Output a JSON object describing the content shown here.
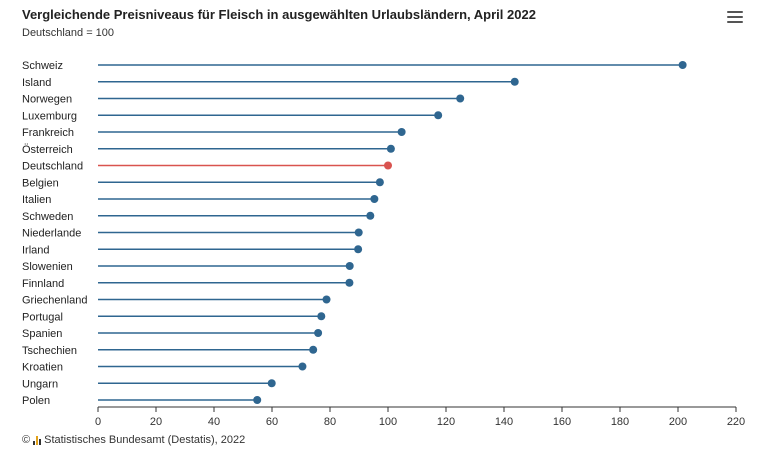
{
  "header": {
    "title": "Vergleichende Preisniveaus für Fleisch in ausgewählten Urlaubsländern, April 2022",
    "subtitle": "Deutschland = 100"
  },
  "menu": {
    "icon": "hamburger-menu-icon"
  },
  "credits": {
    "copyright": "©",
    "logo_icon": "destatis-logo-icon",
    "text": "Statistisches Bundesamt (Destatis), 2022"
  },
  "colors": {
    "series": "#2f6690",
    "highlight": "#d9534f",
    "grid": "#e6e6e6",
    "axis": "#333333"
  },
  "chart_data": {
    "type": "lollipop",
    "orientation": "horizontal",
    "title": "Vergleichende Preisniveaus für Fleisch in ausgewählten Urlaubsländern, April 2022",
    "subtitle": "Deutschland = 100",
    "categories": [
      "Schweiz",
      "Island",
      "Norwegen",
      "Luxemburg",
      "Frankreich",
      "Österreich",
      "Deutschland",
      "Belgien",
      "Italien",
      "Schweden",
      "Niederlande",
      "Irland",
      "Slowenien",
      "Finnland",
      "Griechenland",
      "Portugal",
      "Spanien",
      "Tschechien",
      "Kroatien",
      "Ungarn",
      "Polen"
    ],
    "values": [
      201.6,
      143.7,
      124.9,
      117.3,
      104.7,
      101.0,
      100.0,
      97.2,
      95.3,
      93.9,
      89.9,
      89.7,
      86.8,
      86.7,
      78.8,
      77.0,
      75.9,
      74.2,
      70.5,
      59.9,
      54.9
    ],
    "highlight": "Deutschland",
    "xlim": [
      0,
      220
    ],
    "xticks": [
      0,
      20,
      40,
      60,
      80,
      100,
      120,
      140,
      160,
      180,
      200,
      220
    ],
    "grid": false,
    "legend": "none"
  }
}
